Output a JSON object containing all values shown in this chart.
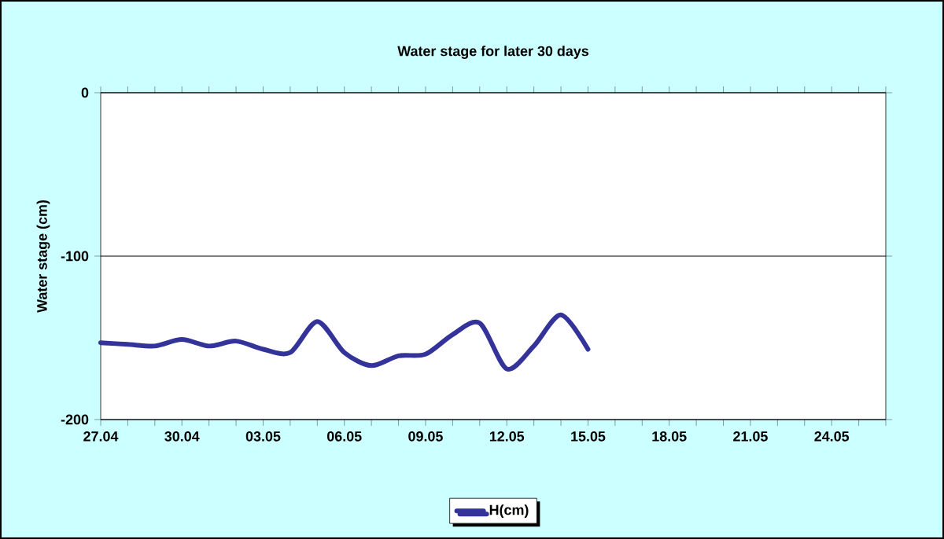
{
  "chart_data": {
    "type": "line",
    "title": "Water stage for later 30 days",
    "ylabel": "Water stage (cm)",
    "categories": [
      "27.04",
      null,
      null,
      "30.04",
      null,
      null,
      "03.05",
      null,
      null,
      "06.05",
      null,
      null,
      "09.05",
      null,
      null,
      "12.05",
      null,
      null,
      "15.05",
      null,
      null,
      "18.05",
      null,
      null,
      "21.05",
      null,
      null,
      "24.05",
      null,
      null
    ],
    "series": [
      {
        "name": "H(cm)",
        "color": "#333399",
        "values": [
          -153,
          -154,
          -155,
          -151,
          -155,
          -152,
          -157,
          -159,
          -140,
          -159,
          -167,
          -161,
          -160,
          -148,
          -141,
          -169,
          -155,
          -136,
          -157,
          null,
          null,
          null,
          null,
          null,
          null,
          null,
          null,
          null,
          null,
          null
        ]
      }
    ],
    "ylim": [
      -200,
      0
    ],
    "yticks": [
      -200,
      -100,
      0
    ],
    "grid": "y",
    "legend": "bottom",
    "marker": "none",
    "line_style": "solid"
  }
}
